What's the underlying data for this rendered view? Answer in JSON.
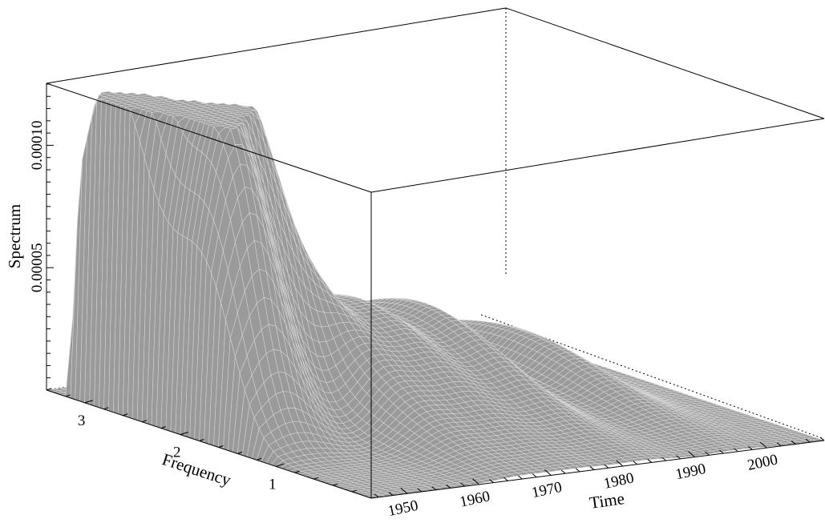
{
  "chart_data": {
    "type": "surface",
    "title": "",
    "xlabel": "Time",
    "ylabel": "Frequency",
    "zlabel": "Spectrum",
    "x_range": [
      1945,
      2008
    ],
    "y_range": [
      0,
      3.4
    ],
    "z_range": [
      0,
      0.000125
    ],
    "x_ticks": [
      {
        "value": 1950,
        "label": "1950"
      },
      {
        "value": 1960,
        "label": "1960"
      },
      {
        "value": 1970,
        "label": "1970"
      },
      {
        "value": 1980,
        "label": "1980"
      },
      {
        "value": 1990,
        "label": "1990"
      },
      {
        "value": 2000,
        "label": "2000"
      }
    ],
    "y_ticks": [
      {
        "value": 1,
        "label": "1"
      },
      {
        "value": 2,
        "label": "2"
      },
      {
        "value": 3,
        "label": "3"
      }
    ],
    "z_ticks": [
      {
        "value": 5e-05,
        "label": "0.00005"
      },
      {
        "value": 0.0001,
        "label": "0.00010"
      }
    ],
    "peaks": [
      {
        "time": 1948,
        "frequency": 2.95,
        "spectrum": 0.000102
      },
      {
        "time": 1950,
        "frequency": 2.55,
        "spectrum": 0.00011
      },
      {
        "time": 1950,
        "frequency": 1.85,
        "spectrum": 0.000108
      },
      {
        "time": 1958,
        "frequency": 2.3,
        "spectrum": 0.00011
      },
      {
        "time": 1966,
        "frequency": 2.3,
        "spectrum": 3.8e-05
      },
      {
        "time": 1974,
        "frequency": 2.3,
        "spectrum": 3.6e-05
      },
      {
        "time": 1983,
        "frequency": 2.3,
        "spectrum": 3.4e-05
      },
      {
        "time": 1996,
        "frequency": 2.3,
        "spectrum": 2e-05
      }
    ],
    "surface_color": "#9a9a9a",
    "mesh_color": "#d4d4d4",
    "grid": false
  }
}
